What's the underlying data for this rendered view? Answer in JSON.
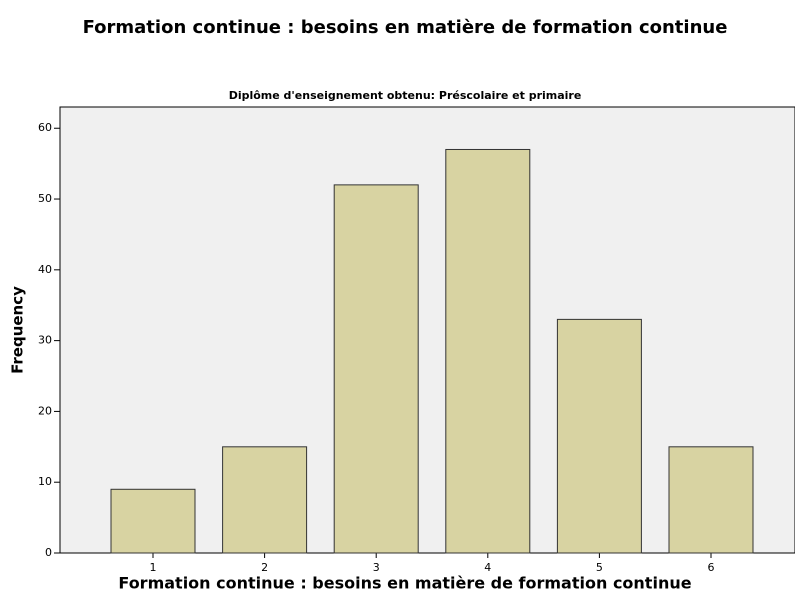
{
  "chart_data": {
    "type": "bar",
    "title": "Formation continue : besoins en matière de formation continue",
    "subtitle": "Diplôme d'enseignement obtenu: Préscolaire et primaire",
    "x_label": "Formation continue : besoins en matière de formation continue",
    "y_label": "Frequency",
    "categories": [
      "1",
      "2",
      "3",
      "4",
      "5",
      "6"
    ],
    "values": [
      9,
      15,
      52,
      57,
      33,
      15
    ],
    "color": "#d8d3a2",
    "ylim": [
      0,
      63
    ],
    "yticks": [
      0,
      10,
      20,
      30,
      40,
      50,
      60
    ],
    "grid": false
  }
}
